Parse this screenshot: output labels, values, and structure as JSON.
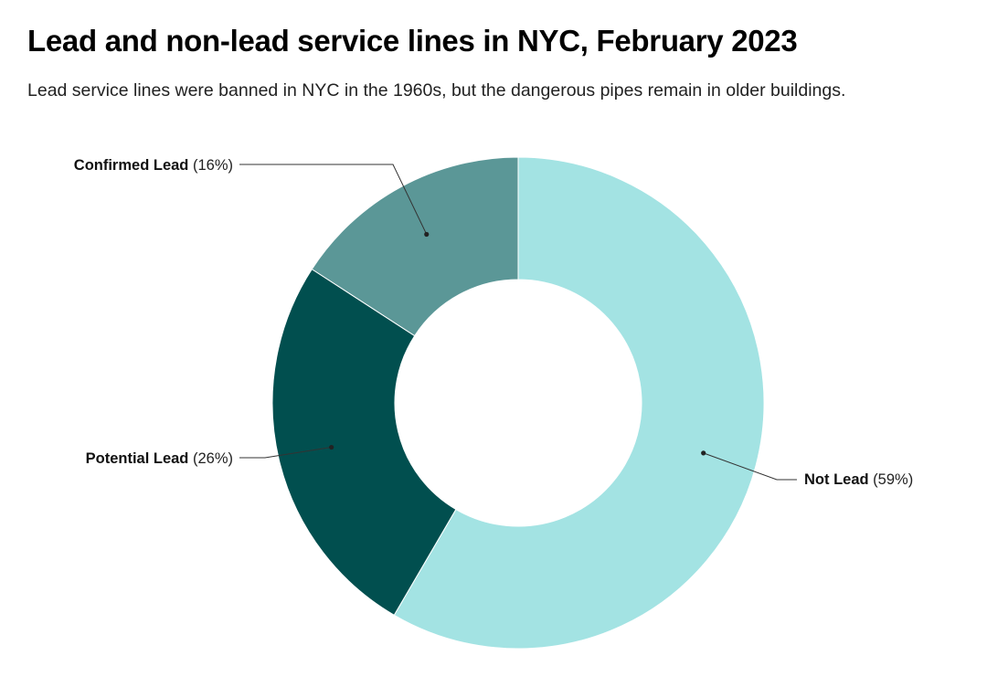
{
  "title": "Lead and non-lead service lines in NYC, February 2023",
  "subtitle": "Lead service lines were banned in NYC in the 1960s, but the dangerous pipes remain in older buildings.",
  "chart_data": {
    "type": "pie",
    "donut": true,
    "title": "Lead and non-lead service lines in NYC, February 2023",
    "subtitle": "Lead service lines were banned in NYC in the 1960s, but the dangerous pipes remain in older buildings.",
    "legend": "none (direct labels)",
    "slices": [
      {
        "label": "Not Lead",
        "value": 59,
        "display": "(59%)",
        "color": "#a3e3e3"
      },
      {
        "label": "Potential Lead",
        "value": 26,
        "display": "(26%)",
        "color": "#014f4f"
      },
      {
        "label": "Confirmed Lead",
        "value": 16,
        "display": "(16%)",
        "color": "#5b9797"
      }
    ]
  }
}
